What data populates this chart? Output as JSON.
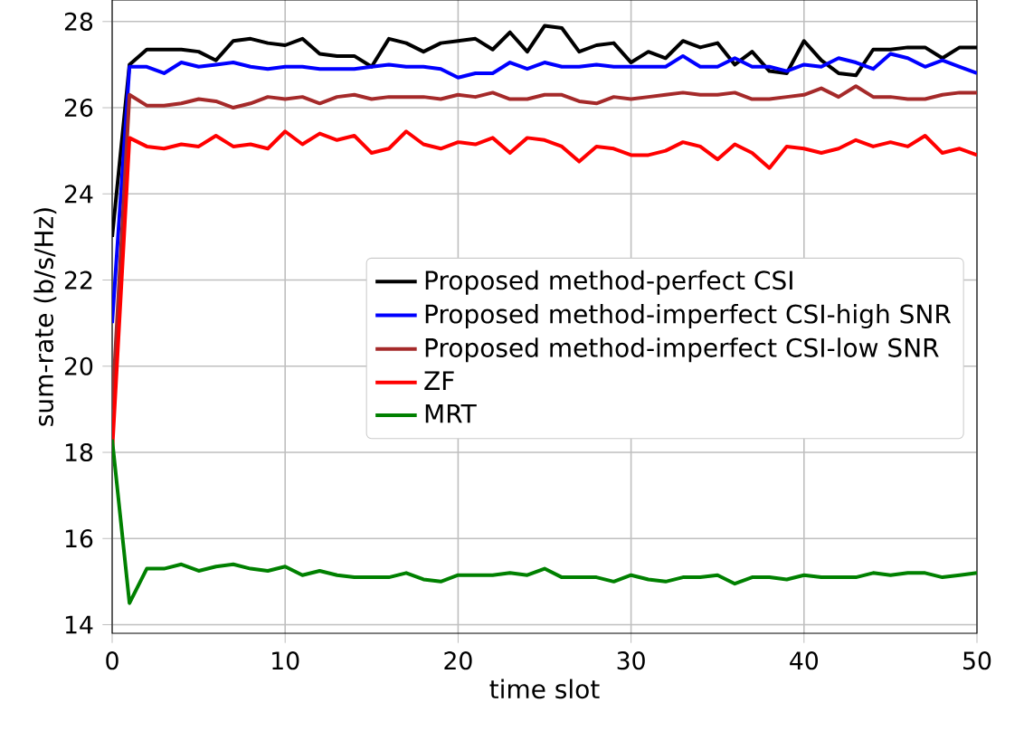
{
  "chart_data": {
    "type": "line",
    "xlabel": "time slot",
    "ylabel": "sum-rate (b/s/Hz)",
    "x": [
      0,
      1,
      2,
      3,
      4,
      5,
      6,
      7,
      8,
      9,
      10,
      11,
      12,
      13,
      14,
      15,
      16,
      17,
      18,
      19,
      20,
      21,
      22,
      23,
      24,
      25,
      26,
      27,
      28,
      29,
      30,
      31,
      32,
      33,
      34,
      35,
      36,
      37,
      38,
      39,
      40,
      41,
      42,
      43,
      44,
      45,
      46,
      47,
      48,
      49,
      50
    ],
    "xlim": [
      0,
      50
    ],
    "xticks": [
      0,
      10,
      20,
      30,
      40,
      50
    ],
    "ylim": [
      13.8,
      28.5
    ],
    "yticks": [
      14,
      16,
      18,
      20,
      22,
      24,
      26,
      28
    ],
    "grid": true,
    "legend": "center right",
    "marker": "none",
    "line_style": "solid",
    "series": [
      {
        "name": "Proposed method-perfect CSI",
        "color": "#000000",
        "values": [
          23.0,
          27.0,
          27.35,
          27.35,
          27.35,
          27.3,
          27.1,
          27.55,
          27.6,
          27.5,
          27.45,
          27.6,
          27.25,
          27.2,
          27.2,
          26.95,
          27.6,
          27.5,
          27.3,
          27.5,
          27.55,
          27.6,
          27.35,
          27.75,
          27.3,
          27.9,
          27.85,
          27.3,
          27.45,
          27.5,
          27.05,
          27.3,
          27.15,
          27.55,
          27.4,
          27.5,
          27.0,
          27.3,
          26.85,
          26.8,
          27.55,
          27.1,
          26.8,
          26.75,
          27.35,
          27.35,
          27.4,
          27.4,
          27.15,
          27.4,
          27.4
        ]
      },
      {
        "name": "Proposed method-imperfect CSI-high SNR",
        "color": "#0000ff",
        "values": [
          21.0,
          26.95,
          26.95,
          26.8,
          27.05,
          26.95,
          27.0,
          27.05,
          26.95,
          26.9,
          26.95,
          26.95,
          26.9,
          26.9,
          26.9,
          26.95,
          27.0,
          26.95,
          26.95,
          26.9,
          26.7,
          26.8,
          26.8,
          27.05,
          26.9,
          27.05,
          26.95,
          26.95,
          27.0,
          26.95,
          26.95,
          26.95,
          26.95,
          27.2,
          26.95,
          26.95,
          27.15,
          26.95,
          26.95,
          26.85,
          27.0,
          26.95,
          27.15,
          27.05,
          26.9,
          27.25,
          27.15,
          26.95,
          27.1,
          26.95,
          26.8
        ]
      },
      {
        "name": "Proposed method-imperfect CSI-low SNR",
        "color": "#a52a2a",
        "values": [
          19.0,
          26.3,
          26.05,
          26.05,
          26.1,
          26.2,
          26.15,
          26.0,
          26.1,
          26.25,
          26.2,
          26.25,
          26.1,
          26.25,
          26.3,
          26.2,
          26.25,
          26.25,
          26.25,
          26.2,
          26.3,
          26.25,
          26.35,
          26.2,
          26.2,
          26.3,
          26.3,
          26.15,
          26.1,
          26.25,
          26.2,
          26.25,
          26.3,
          26.35,
          26.3,
          26.3,
          26.35,
          26.2,
          26.2,
          26.25,
          26.3,
          26.45,
          26.25,
          26.5,
          26.25,
          26.25,
          26.2,
          26.2,
          26.3,
          26.35,
          26.35
        ]
      },
      {
        "name": "ZF",
        "color": "#ff0000",
        "values": [
          18.0,
          25.3,
          25.1,
          25.05,
          25.15,
          25.1,
          25.35,
          25.1,
          25.15,
          25.05,
          25.45,
          25.15,
          25.4,
          25.25,
          25.35,
          24.95,
          25.05,
          25.45,
          25.15,
          25.05,
          25.2,
          25.15,
          25.3,
          24.95,
          25.3,
          25.25,
          25.1,
          24.75,
          25.1,
          25.05,
          24.9,
          24.9,
          25.0,
          25.2,
          25.1,
          24.8,
          25.15,
          24.95,
          24.6,
          25.1,
          25.05,
          24.95,
          25.05,
          25.25,
          25.1,
          25.2,
          25.1,
          25.35,
          24.95,
          25.05,
          24.9
        ]
      },
      {
        "name": "MRT",
        "color": "#008000",
        "values": [
          18.3,
          14.5,
          15.3,
          15.3,
          15.4,
          15.25,
          15.35,
          15.4,
          15.3,
          15.25,
          15.35,
          15.15,
          15.25,
          15.15,
          15.1,
          15.1,
          15.1,
          15.2,
          15.05,
          15.0,
          15.15,
          15.15,
          15.15,
          15.2,
          15.15,
          15.3,
          15.1,
          15.1,
          15.1,
          15.0,
          15.15,
          15.05,
          15.0,
          15.1,
          15.1,
          15.15,
          14.95,
          15.1,
          15.1,
          15.05,
          15.15,
          15.1,
          15.1,
          15.1,
          15.2,
          15.15,
          15.2,
          15.2,
          15.1,
          15.15,
          15.2
        ]
      }
    ]
  }
}
